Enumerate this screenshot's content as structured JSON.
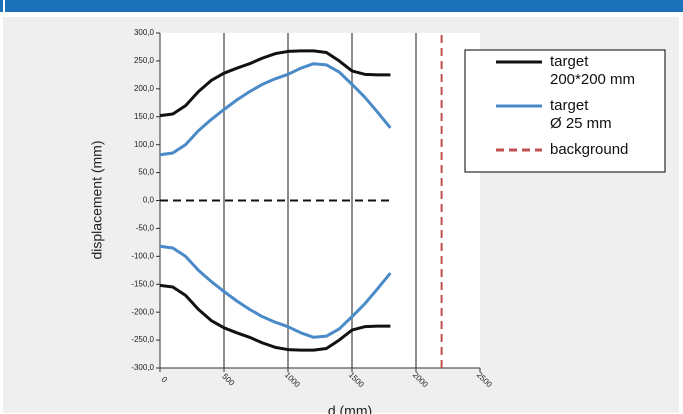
{
  "chart_data": {
    "type": "line",
    "xlabel": "d (mm)",
    "ylabel": "displacement (mm)",
    "xlim": [
      0,
      2500
    ],
    "xticks": [
      0,
      500,
      1000,
      1500,
      2000,
      2500
    ],
    "ylim": [
      -300,
      300
    ],
    "yticks": [
      {
        "value": -300,
        "label": "-300,0"
      },
      {
        "value": -250,
        "label": "-250,0"
      },
      {
        "value": -200,
        "label": "-200,0"
      },
      {
        "value": -150,
        "label": "-150,0"
      },
      {
        "value": -100,
        "label": "-100,0"
      },
      {
        "value": -50,
        "label": "-50,0"
      },
      {
        "value": 0,
        "label": "0,0"
      },
      {
        "value": 50,
        "label": "50,0"
      },
      {
        "value": 100,
        "label": "100,0"
      },
      {
        "value": 150,
        "label": "150,0"
      },
      {
        "value": 200,
        "label": "200,0"
      },
      {
        "value": 250,
        "label": "250,0"
      },
      {
        "value": 300,
        "label": "300,0"
      }
    ],
    "grid": true,
    "x": [
      0,
      100,
      200,
      300,
      400,
      500,
      600,
      700,
      800,
      900,
      1000,
      1100,
      1200,
      1300,
      1400,
      1500,
      1600,
      1700,
      1800
    ],
    "series": [
      {
        "name": "target\n200*200 mm",
        "color": "#111111",
        "values": [
          152,
          155,
          170,
          195,
          215,
          228,
          237,
          245,
          255,
          263,
          267,
          268,
          268,
          265,
          250,
          232,
          226,
          225,
          225
        ]
      },
      {
        "color": "#111111",
        "values": [
          -152,
          -155,
          -170,
          -195,
          -215,
          -228,
          -237,
          -245,
          -255,
          -263,
          -267,
          -268,
          -268,
          -265,
          -250,
          -232,
          -226,
          -225,
          -225
        ]
      },
      {
        "name": "target\nØ 25 mm",
        "color": "#4a8ac8",
        "values": [
          82,
          85,
          100,
          125,
          145,
          163,
          180,
          195,
          208,
          218,
          226,
          237,
          245,
          243,
          230,
          208,
          185,
          158,
          130
        ]
      },
      {
        "color": "#4a8ac8",
        "values": [
          -82,
          -85,
          -100,
          -125,
          -145,
          -163,
          -180,
          -195,
          -208,
          -218,
          -226,
          -237,
          -245,
          -243,
          -230,
          -208,
          -185,
          -158,
          -130
        ]
      },
      {
        "color": "#111111",
        "dashed": true,
        "values": [
          0,
          0,
          0,
          0,
          0,
          0,
          0,
          0,
          0,
          0,
          0,
          0,
          0,
          0,
          0,
          0,
          0,
          0,
          0
        ]
      },
      {
        "name": "background",
        "color": "#c0504d",
        "dashed": true,
        "x": [
          2200,
          2200
        ],
        "values": [
          -300,
          300
        ]
      }
    ]
  }
}
